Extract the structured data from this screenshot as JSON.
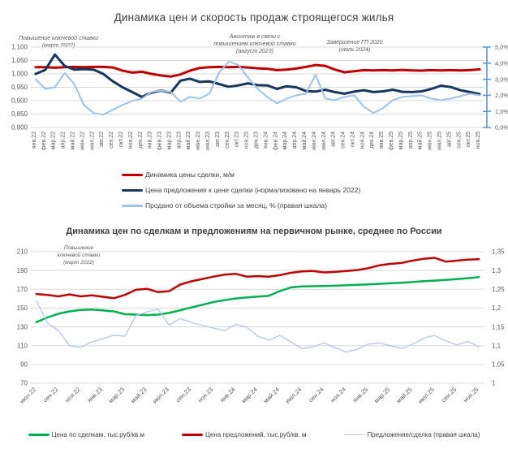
{
  "chart_data": [
    {
      "type": "line",
      "title": "Динамика цен и скорость продаж строящегося жилья",
      "x": [
        "янв.22",
        "фев.22",
        "мар.22",
        "апр.22",
        "май.22",
        "июн.22",
        "июл.22",
        "авг.22",
        "сен.22",
        "окт.22",
        "ноя.22",
        "дек.22",
        "янв.23",
        "фев.23",
        "мар.23",
        "апр.23",
        "май.23",
        "июн.23",
        "июл.23",
        "авг.23",
        "сен.23",
        "окт.23",
        "ноя.23",
        "дек.23",
        "янв.24",
        "фев.24",
        "мар.24",
        "апр.24",
        "май.24",
        "июн.24",
        "июл.24",
        "авг.24",
        "сен.24",
        "окт.24",
        "ноя.24",
        "дек.24",
        "янв.25",
        "фев.25",
        "мар.25",
        "апр.25",
        "май.25",
        "июн.25",
        "июл.25",
        "авг.25",
        "сен.25",
        "окт.25",
        "ноя.25"
      ],
      "left_axis": {
        "min": 0.8,
        "max": 1.1,
        "ticks": [
          "1,100",
          "1,050",
          "1,000",
          "0,950",
          "0,900",
          "0,850",
          "0,800"
        ]
      },
      "right_axis": {
        "min": 0,
        "max": 5,
        "ticks": [
          "5,0%",
          "4,0%",
          "3,0%",
          "2,0%",
          "1,0%",
          "0,0%"
        ],
        "color": "#5B9BD5"
      },
      "grid": true,
      "legend_position": "bottom-left",
      "series": [
        {
          "name": "Динамика цены сделки, м/м",
          "color": "#C00000",
          "axis": "left",
          "width": 3,
          "values": [
            1.025,
            1.025,
            1.023,
            1.025,
            1.026,
            1.025,
            1.026,
            1.026,
            1.024,
            1.012,
            1.005,
            1.008,
            1.0,
            0.994,
            0.99,
            0.998,
            1.012,
            1.022,
            1.025,
            1.026,
            1.025,
            1.026,
            1.024,
            1.021,
            1.019,
            1.014,
            1.016,
            1.02,
            1.026,
            1.033,
            1.03,
            1.016,
            1.006,
            1.01,
            1.014,
            1.013,
            1.014,
            1.013,
            1.015,
            1.013,
            1.012,
            1.014,
            1.013,
            1.014,
            1.013,
            1.014,
            1.017
          ]
        },
        {
          "name": "Цена предложения к цене сделки (нормализовано на январь 2022)",
          "color": "#17375E",
          "axis": "left",
          "width": 3,
          "values": [
            1.0,
            1.015,
            1.072,
            1.03,
            1.016,
            1.018,
            1.016,
            1.0,
            0.972,
            0.95,
            0.932,
            0.914,
            0.93,
            0.938,
            0.93,
            0.975,
            0.982,
            0.97,
            0.972,
            0.962,
            0.952,
            0.957,
            0.965,
            0.958,
            0.957,
            0.944,
            0.954,
            0.95,
            0.936,
            0.934,
            0.941,
            0.932,
            0.926,
            0.934,
            0.939,
            0.932,
            0.935,
            0.941,
            0.933,
            0.932,
            0.935,
            0.944,
            0.956,
            0.951,
            0.939,
            0.932,
            0.925
          ]
        },
        {
          "name": "Продано от объема стройки за месяц, % (правая шкала)",
          "color": "#9DC3E6",
          "axis": "right",
          "width": 2,
          "values": [
            3.0,
            2.4,
            2.5,
            3.4,
            2.7,
            1.4,
            0.9,
            0.8,
            1.1,
            1.4,
            1.65,
            1.8,
            2.2,
            2.3,
            2.2,
            1.6,
            1.9,
            1.8,
            2.1,
            3.4,
            4.1,
            3.9,
            3.1,
            2.4,
            1.9,
            1.5,
            1.8,
            2.0,
            2.1,
            3.3,
            1.8,
            1.7,
            1.9,
            2.0,
            1.3,
            0.9,
            1.2,
            1.7,
            1.9,
            1.95,
            2.0,
            1.8,
            1.7,
            1.8,
            1.95,
            2.1,
            2.0
          ]
        }
      ],
      "annotations": [
        {
          "lines": [
            "Повышение ключевой ставки",
            "(март 2022)"
          ]
        },
        {
          "lines": [
            "Ажиотаж в связи с",
            "повышением ключевой ставки",
            "(август 2023)"
          ]
        },
        {
          "lines": [
            "Завершение ГП 2020",
            "(июль 2024)"
          ]
        }
      ]
    },
    {
      "type": "line",
      "title": "Динамика цен по сделкам и предложениям на первичном рынке, среднее по России",
      "x": [
        "июл.22",
        "авг.22",
        "сен.22",
        "окт.22",
        "ноя.22",
        "дек.22",
        "янв.23",
        "фев.23",
        "мар.23",
        "апр.23",
        "май.23",
        "июн.23",
        "июл.23",
        "авг.23",
        "сен.23",
        "окт.23",
        "ноя.23",
        "дек.23",
        "янв.24",
        "фев.24",
        "мар.24",
        "апр.24",
        "май.24",
        "июн.24",
        "июл.24",
        "авг.24",
        "сен.24",
        "окт.24",
        "ноя.24",
        "дек.24",
        "янв.25",
        "фев.25",
        "мар.25",
        "апр.25",
        "май.25",
        "июн.25",
        "июл.25",
        "авг.25",
        "сен.25",
        "окт.25",
        "ноя.25"
      ],
      "x_label_every": 2,
      "left_axis": {
        "min": 70,
        "max": 210,
        "ticks": [
          "210",
          "190",
          "170",
          "150",
          "130",
          "110",
          "90",
          "70"
        ]
      },
      "right_axis": {
        "min": 1,
        "max": 1.35,
        "ticks": [
          "1,35",
          "1,3",
          "1,25",
          "1,2",
          "1,15",
          "1,1",
          "1,05",
          "1"
        ]
      },
      "grid": true,
      "legend_position": "bottom-center",
      "series": [
        {
          "name": "Цена по сделкам, тыс.руб/кв.м",
          "color": "#00B050",
          "axis": "left",
          "width": 2.5,
          "values": [
            135,
            140,
            144,
            146.5,
            148,
            148.5,
            147.5,
            146.5,
            143.5,
            143,
            142.5,
            143,
            144.8,
            147.7,
            150.6,
            153.5,
            156.4,
            158.4,
            160.2,
            161.3,
            162.2,
            163,
            168,
            172,
            173,
            173.3,
            173.5,
            173.8,
            174.2,
            174.7,
            175.3,
            175.8,
            176.4,
            177,
            177.7,
            178.6,
            179.2,
            179.9,
            180.8,
            181.8,
            183
          ]
        },
        {
          "name": "Цена предложений, тыс.руб/кв. м",
          "color": "#C00000",
          "axis": "left",
          "width": 2.5,
          "values": [
            165,
            164,
            162.5,
            164.5,
            162.5,
            163.5,
            162,
            160.5,
            164,
            169.5,
            170.5,
            167,
            168,
            175,
            178.5,
            181,
            183.5,
            185.5,
            186.5,
            183.5,
            184,
            183.5,
            185,
            187.5,
            189,
            189.5,
            188,
            188.5,
            189.5,
            190.5,
            192.5,
            195.5,
            197,
            198,
            200.5,
            202.5,
            203.5,
            199.5,
            200.5,
            201.5,
            202
          ]
        },
        {
          "name": "Предложение/сделка (правая шкала)",
          "color": "#B4C7E7",
          "axis": "right",
          "width": 1.3,
          "values": [
            1.22,
            1.16,
            1.14,
            1.1,
            1.095,
            1.11,
            1.118,
            1.128,
            1.125,
            1.18,
            1.19,
            1.197,
            1.155,
            1.172,
            1.162,
            1.154,
            1.147,
            1.14,
            1.157,
            1.15,
            1.125,
            1.115,
            1.127,
            1.11,
            1.092,
            1.097,
            1.107,
            1.095,
            1.083,
            1.09,
            1.104,
            1.107,
            1.1,
            1.092,
            1.104,
            1.12,
            1.127,
            1.113,
            1.102,
            1.111,
            1.097
          ]
        }
      ],
      "annotations": [
        {
          "lines": [
            "Повышение",
            "ключевой ставки",
            "(март 2022)"
          ]
        }
      ]
    }
  ],
  "style": {
    "grid_color": "#D9D9D9",
    "axis_text_color": "#595959",
    "title_color": "#404040"
  }
}
